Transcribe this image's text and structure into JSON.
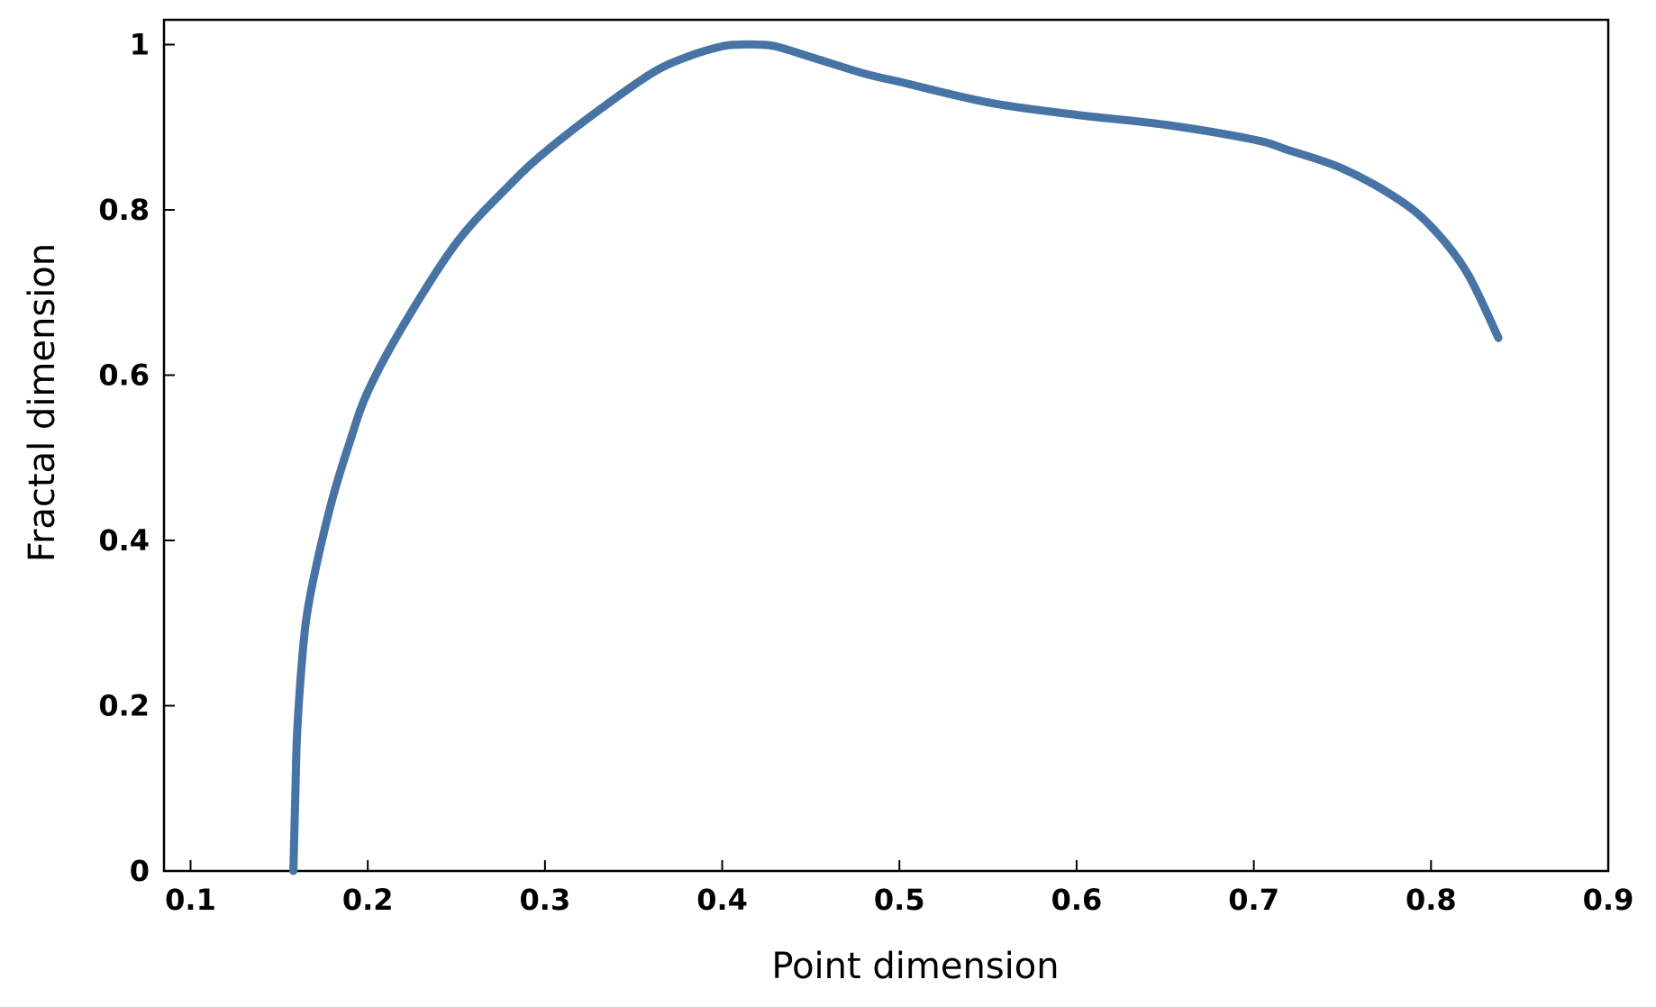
{
  "chart_data": {
    "type": "line",
    "title": "",
    "xlabel": "Point dimension",
    "ylabel": "Fractal dimension",
    "xlim": [
      0.085,
      0.9
    ],
    "ylim": [
      0,
      1.03
    ],
    "xticks": [
      0.1,
      0.2,
      0.3,
      0.4,
      0.5,
      0.6,
      0.7,
      0.8,
      0.9
    ],
    "xtick_labels": [
      "0.1",
      "0.2",
      "0.3",
      "0.4",
      "0.5",
      "0.6",
      "0.7",
      "0.8",
      "0.9"
    ],
    "yticks": [
      0,
      0.2,
      0.4,
      0.6,
      0.8,
      1
    ],
    "ytick_labels": [
      "0",
      "0.2",
      "0.4",
      "0.6",
      "0.8",
      "1"
    ],
    "grid": false,
    "line_color": "#4874a5",
    "series": [
      {
        "x": [
          0.158,
          0.159,
          0.16,
          0.162,
          0.165,
          0.17,
          0.18,
          0.19,
          0.2,
          0.22,
          0.25,
          0.28,
          0.3,
          0.33,
          0.36,
          0.38,
          0.4,
          0.41,
          0.42,
          0.43,
          0.45,
          0.48,
          0.5,
          0.55,
          0.6,
          0.65,
          0.7,
          0.72,
          0.75,
          0.78,
          0.8,
          0.82,
          0.838
        ],
        "y": [
          0,
          0.08,
          0.16,
          0.23,
          0.3,
          0.36,
          0.45,
          0.52,
          0.58,
          0.66,
          0.76,
          0.83,
          0.87,
          0.92,
          0.965,
          0.985,
          0.998,
          1.0,
          1.0,
          0.998,
          0.985,
          0.965,
          0.955,
          0.93,
          0.915,
          0.903,
          0.885,
          0.872,
          0.85,
          0.815,
          0.78,
          0.725,
          0.645
        ]
      }
    ]
  }
}
